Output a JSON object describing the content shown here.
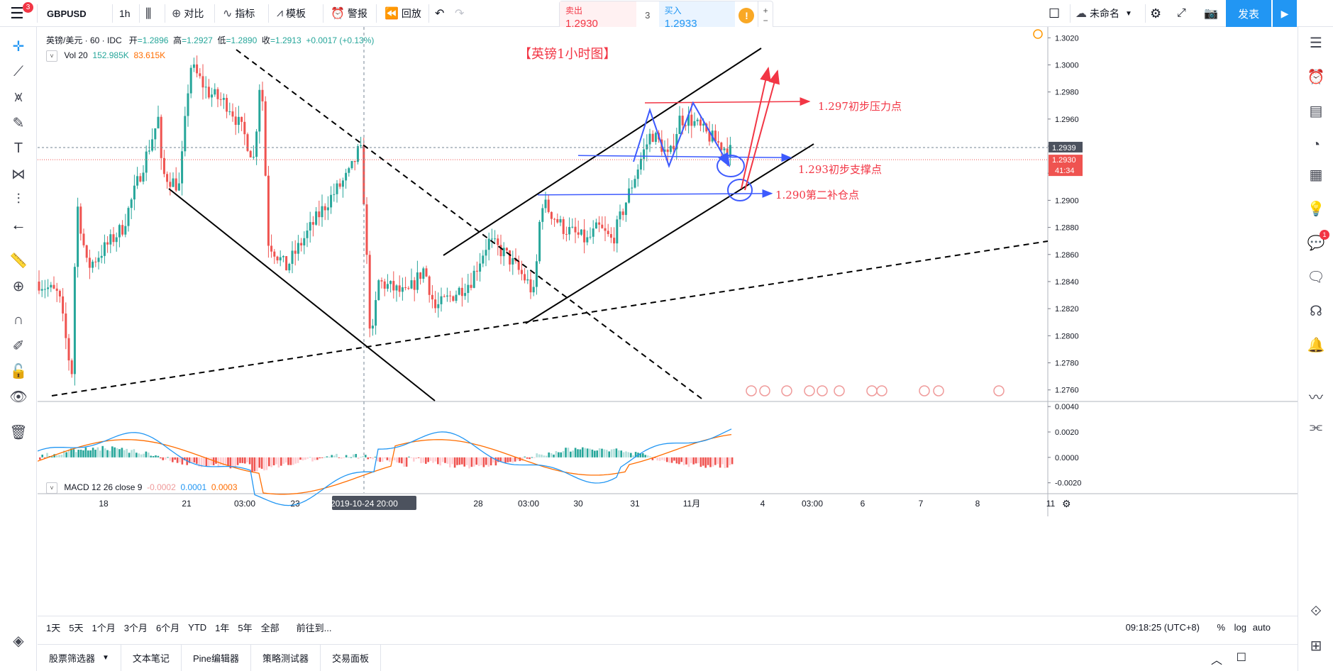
{
  "toolbar": {
    "menu_badge": "3",
    "symbol": "GBPUSD",
    "interval": "1h",
    "compare": "对比",
    "indicators": "指标",
    "templates": "模板",
    "alert": "警报",
    "replay": "回放",
    "layout_name": "未命名",
    "publish": "发表"
  },
  "trade": {
    "sell_label": "卖出",
    "sell_price": "1.2930",
    "spread": "3",
    "buy_label": "买入",
    "buy_price": "1.2933"
  },
  "legend": {
    "title": "英镑/美元 · 60 · IDC",
    "open_label": "开",
    "open": "=1.2896",
    "high_label": "高",
    "high": "=1.2927",
    "low_label": "低",
    "low": "=1.2890",
    "close_label": "收",
    "close": "=1.2913",
    "change": "+0.0017 (+0.13%)",
    "vol_label": "Vol 20",
    "vol_value1": "152.985K",
    "vol_value2": "83.615K",
    "macd_label": "MACD 12 26 close 9",
    "macd_hist": "-0.0002",
    "macd_line": "0.0001",
    "macd_signal": "0.0003"
  },
  "annotations": {
    "title": "【英镑1小时图】",
    "resistance": "1.297初步压力点",
    "support": "1.293初步支撑点",
    "add_position": "1.290第二补仓点"
  },
  "chart_data": {
    "type": "candlestick",
    "symbol": "GBPUSD",
    "interval": "60",
    "y_ticks": [
      "1.3020",
      "1.3000",
      "1.2980",
      "1.2960",
      "1.2940",
      "1.2920",
      "1.2900",
      "1.2880",
      "1.2860",
      "1.2840",
      "1.2820",
      "1.2800",
      "1.2780",
      "1.2760"
    ],
    "ylim": [
      1.2752,
      1.3028
    ],
    "last_price": "1.2939",
    "bid_price": "1.2930",
    "countdown": "41:34",
    "x_ticks": [
      "18",
      "21",
      "03:00",
      "23",
      "24",
      "2019-10-24  20:00",
      "28",
      "03:00",
      "30",
      "31",
      "11月",
      "4",
      "03:00",
      "6",
      "7",
      "8",
      "11"
    ],
    "macd_ticks": [
      "0.0040",
      "0.0020",
      "0.0000",
      "-0.0020"
    ],
    "macd_ylim": [
      -0.0028,
      0.0044
    ],
    "levels": [
      {
        "label": "1.297初步压力点",
        "value": 1.2973
      },
      {
        "label": "1.293初步支撑点",
        "value": 1.2932
      },
      {
        "label": "1.290第二补仓点",
        "value": 1.2904
      }
    ],
    "colors": {
      "up": "#26a69a",
      "down": "#ef5350",
      "macd": "#2196f3",
      "signal": "#ff6d00",
      "annotation": "#f23645",
      "arrow_blue": "#3d5afe"
    }
  },
  "bottom": {
    "ranges": [
      "1天",
      "5天",
      "1个月",
      "3个月",
      "6个月",
      "YTD",
      "1年",
      "5年",
      "全部"
    ],
    "goto": "前往到...",
    "clock": "09:18:25 (UTC+8)",
    "pct": "%",
    "log": "log",
    "auto": "auto"
  },
  "panels": [
    "股票筛选器",
    "文本笔记",
    "Pine编辑器",
    "策略测试器",
    "交易面板"
  ],
  "right_badge": "1"
}
